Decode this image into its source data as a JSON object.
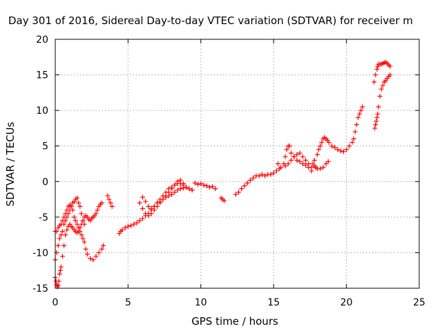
{
  "chart_data": {
    "type": "scatter",
    "title": "Day 301 of 2016, Sidereal Day-to-day VTEC variation (SDTVAR) for receiver m",
    "xlabel": "GPS time / hours",
    "ylabel": "SDTVAR / TECUs",
    "xlim": [
      0,
      25
    ],
    "ylim": [
      -15,
      20
    ],
    "xticks": [
      0,
      5,
      10,
      15,
      20,
      25
    ],
    "yticks": [
      -15,
      -10,
      -5,
      0,
      5,
      10,
      15,
      20
    ],
    "grid": true,
    "marker": "+",
    "color": "#ff0000",
    "series": [
      {
        "x": [
          0.0,
          0.1,
          0.2,
          0.3,
          0.4,
          0.5,
          0.6,
          0.7,
          0.8,
          0.9,
          1.0,
          1.1,
          1.2,
          1.3,
          1.4,
          1.5,
          1.6,
          1.7,
          1.8,
          1.9,
          2.0,
          2.1,
          2.2,
          2.4,
          2.6,
          2.8,
          3.0,
          3.2,
          3.3
        ],
        "y": [
          -7.0,
          -7.0,
          -6.5,
          -6.2,
          -6.0,
          -5.5,
          -5.0,
          -4.5,
          -4.0,
          -3.5,
          -3.3,
          -3.5,
          -4.0,
          -5.0,
          -5.5,
          -6.0,
          -6.5,
          -7.0,
          -7.5,
          -8.0,
          -8.5,
          -9.5,
          -10.2,
          -10.8,
          -11.0,
          -10.5,
          -10.0,
          -9.5,
          -9.0
        ]
      },
      {
        "x": [
          0.0,
          0.05,
          0.1,
          0.15,
          0.2,
          0.25,
          0.3,
          0.35,
          0.4,
          0.5,
          0.6,
          0.7,
          0.8,
          0.9,
          1.0,
          1.1,
          1.2,
          1.3,
          1.4,
          1.5,
          1.6,
          1.7,
          1.8,
          1.9,
          2.0,
          2.1,
          2.2,
          2.3,
          2.4,
          2.5,
          2.6,
          2.7,
          2.8,
          2.9,
          3.0,
          3.1,
          3.2
        ],
        "y": [
          -13.5,
          -14.0,
          -14.5,
          -14.8,
          -14.6,
          -14.0,
          -13.0,
          -12.5,
          -12.0,
          -10.5,
          -9.0,
          -7.5,
          -6.8,
          -6.3,
          -6.0,
          -6.3,
          -6.5,
          -6.8,
          -7.0,
          -7.2,
          -7.0,
          -6.5,
          -6.0,
          -5.5,
          -5.0,
          -4.8,
          -5.0,
          -5.3,
          -5.5,
          -5.2,
          -5.0,
          -4.8,
          -4.5,
          -4.0,
          -3.5,
          -3.2,
          -3.0
        ]
      },
      {
        "x": [
          0.0,
          0.1,
          0.2,
          0.3,
          0.4,
          0.5,
          0.6,
          0.7,
          0.8,
          0.9,
          1.0,
          1.1,
          1.2,
          1.3,
          1.4,
          1.5,
          1.6,
          1.7,
          1.8,
          1.9,
          2.0
        ],
        "y": [
          -11.0,
          -10.0,
          -9.0,
          -8.0,
          -7.5,
          -7.0,
          -6.0,
          -5.5,
          -5.0,
          -4.5,
          -4.0,
          -3.5,
          -3.0,
          -2.8,
          -2.5,
          -2.3,
          -3.0,
          -3.5,
          -4.5,
          -5.5,
          -6.0
        ]
      },
      {
        "x": [
          3.6,
          3.7,
          3.8,
          3.9
        ],
        "y": [
          -2.0,
          -2.5,
          -3.0,
          -3.5
        ]
      },
      {
        "x": [
          4.4,
          4.5,
          4.6,
          4.8,
          5.0,
          5.2,
          5.4,
          5.6,
          5.8,
          6.0,
          6.2,
          6.4,
          6.6,
          6.8,
          7.0,
          7.2,
          7.4,
          7.6,
          7.8,
          8.0,
          8.2,
          8.4,
          8.6,
          8.8,
          9.0,
          9.2,
          9.4
        ],
        "y": [
          -7.3,
          -7.0,
          -6.8,
          -6.5,
          -6.3,
          -6.2,
          -6.0,
          -5.8,
          -5.5,
          -5.2,
          -4.8,
          -4.5,
          -4.0,
          -3.5,
          -3.0,
          -2.5,
          -2.0,
          -1.5,
          -1.0,
          -0.8,
          -0.5,
          -0.3,
          -0.3,
          -0.5,
          -0.8,
          -1.0,
          -1.2
        ]
      },
      {
        "x": [
          5.8,
          6.0,
          6.2,
          6.4,
          6.6,
          6.8,
          7.0,
          7.2,
          7.4,
          7.6,
          7.8,
          8.0,
          8.2,
          8.4,
          8.6,
          8.8,
          9.0,
          9.2,
          9.4
        ],
        "y": [
          -3.0,
          -3.8,
          -4.5,
          -4.8,
          -4.5,
          -4.0,
          -3.5,
          -3.0,
          -2.5,
          -2.0,
          -1.5,
          -1.0,
          -0.5,
          0.0,
          0.2,
          -0.3,
          -0.8,
          -1.0,
          -1.2
        ]
      },
      {
        "x": [
          6.0,
          6.2,
          6.4,
          6.6,
          6.8,
          7.0,
          7.2,
          7.4,
          7.6,
          7.8,
          8.0,
          8.2,
          8.4,
          8.6,
          8.8
        ],
        "y": [
          -2.2,
          -2.8,
          -3.5,
          -3.8,
          -3.5,
          -3.0,
          -2.8,
          -2.5,
          -2.2,
          -2.0,
          -1.8,
          -1.5,
          -1.2,
          -1.0,
          -0.9
        ]
      },
      {
        "x": [
          9.6,
          9.8,
          10.0,
          10.2,
          10.4,
          10.6,
          10.8,
          11.0
        ],
        "y": [
          -0.2,
          -0.4,
          -0.3,
          -0.5,
          -0.6,
          -0.8,
          -0.7,
          -1.0
        ]
      },
      {
        "x": [
          11.4,
          11.5,
          11.6
        ],
        "y": [
          -2.3,
          -2.5,
          -2.7
        ]
      },
      {
        "x": [
          12.4,
          12.6,
          12.8,
          13.0,
          13.2,
          13.4,
          13.6,
          13.8,
          14.0,
          14.2,
          14.4,
          14.6,
          14.8,
          15.0,
          15.2,
          15.4
        ],
        "y": [
          -1.8,
          -1.5,
          -1.0,
          -0.6,
          -0.2,
          0.2,
          0.5,
          0.8,
          0.8,
          1.0,
          0.8,
          1.0,
          1.0,
          1.2,
          1.5,
          1.8
        ]
      },
      {
        "x": [
          15.3,
          15.5,
          15.7,
          15.8,
          15.9,
          16.0,
          16.1,
          16.2,
          16.4,
          16.6,
          16.8,
          17.0,
          17.2,
          17.4,
          17.6
        ],
        "y": [
          2.5,
          2.0,
          2.5,
          3.5,
          4.5,
          5.0,
          5.0,
          4.0,
          3.5,
          3.0,
          2.8,
          2.5,
          2.3,
          2.0,
          1.5
        ]
      },
      {
        "x": [
          15.8,
          16.0,
          16.2,
          16.4,
          16.6,
          16.8,
          17.0,
          17.2,
          17.4,
          17.6
        ],
        "y": [
          2.2,
          2.5,
          3.0,
          3.5,
          3.8,
          4.0,
          3.5,
          3.0,
          2.5,
          2.0
        ]
      },
      {
        "x": [
          17.8,
          18.0,
          18.1,
          18.2,
          18.3,
          18.4,
          18.5,
          18.6,
          18.7,
          18.8,
          19.0,
          19.2,
          19.4,
          19.6,
          19.8,
          20.0
        ],
        "y": [
          3.0,
          3.8,
          4.5,
          5.0,
          5.5,
          6.0,
          6.2,
          6.0,
          5.8,
          5.5,
          5.0,
          4.8,
          4.5,
          4.3,
          4.2,
          4.5
        ]
      },
      {
        "x": [
          17.7,
          17.8,
          17.9,
          18.0,
          18.2,
          18.4,
          18.6
        ],
        "y": [
          2.5,
          2.2,
          2.0,
          1.8,
          1.8,
          2.0,
          2.5
        ]
      },
      {
        "x": [
          18.75
        ],
        "y": [
          2.8
        ]
      },
      {
        "x": [
          20.2,
          20.4,
          20.5,
          20.6,
          20.7,
          20.8,
          20.9,
          21.0,
          21.1
        ],
        "y": [
          5.0,
          5.5,
          6.0,
          7.0,
          8.0,
          9.0,
          9.5,
          10.0,
          10.5
        ]
      },
      {
        "x": [
          21.9,
          22.0,
          22.1,
          22.15,
          22.2,
          22.3,
          22.4,
          22.5,
          22.6,
          22.7,
          22.8,
          22.9,
          23.0
        ],
        "y": [
          14.0,
          15.0,
          15.8,
          16.2,
          16.5,
          16.5,
          16.5,
          16.6,
          16.7,
          16.8,
          16.6,
          16.4,
          16.2
        ]
      },
      {
        "x": [
          21.95,
          22.0,
          22.05,
          22.1,
          22.15,
          22.2,
          22.3,
          22.4,
          22.5,
          22.6,
          22.7,
          22.8,
          22.9,
          23.0
        ],
        "y": [
          7.5,
          8.0,
          8.5,
          9.0,
          9.5,
          10.5,
          12.0,
          13.0,
          13.5,
          14.0,
          14.2,
          14.5,
          14.8,
          15.0
        ]
      }
    ]
  }
}
